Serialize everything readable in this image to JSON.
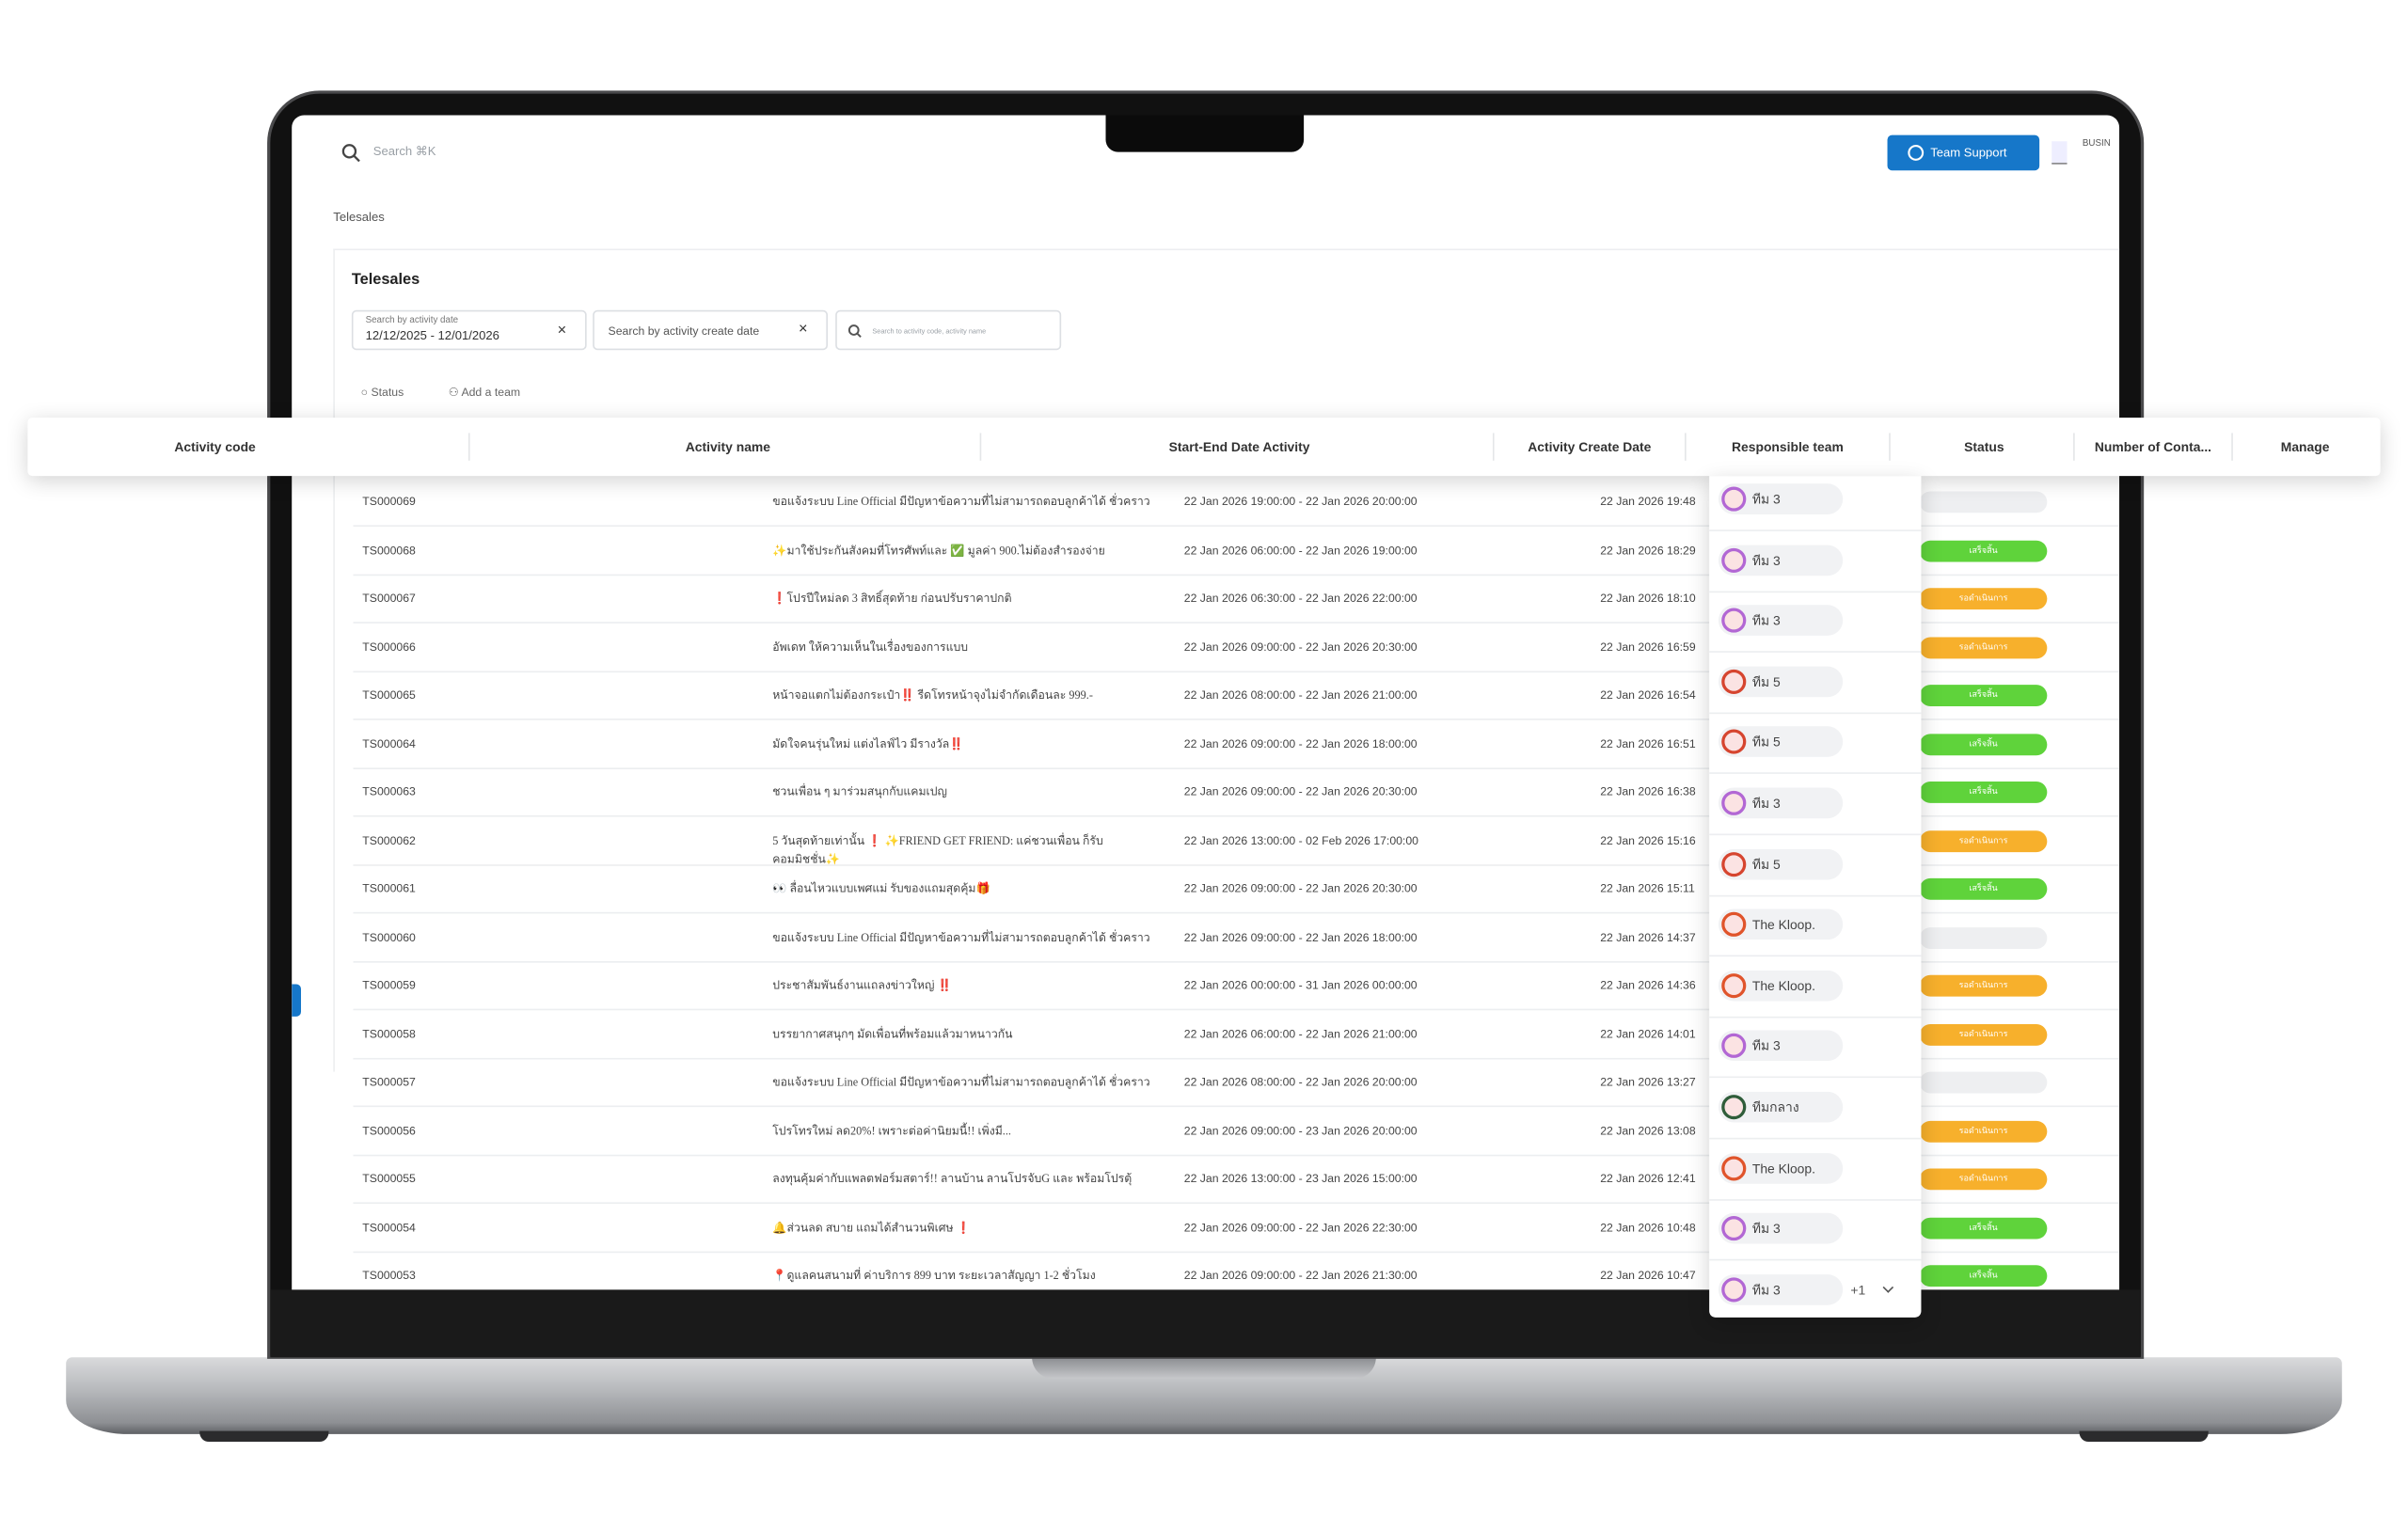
{
  "header": {
    "search_placeholder": "Search ⌘K",
    "team_support": "Team Support",
    "business": "BUSIN"
  },
  "breadcrumb": "Telesales",
  "panel": {
    "title": "Telesales",
    "activity_date_label": "Search by activity date",
    "activity_date": "12/12/2025 - 12/01/2026",
    "create_date": "Search by activity create date",
    "search_placeholder": "Search to activity code, activity name",
    "status": "Status",
    "add_team": "Add a team"
  },
  "table": {
    "columns": [
      "Activity code",
      "Activity name",
      "Start-End Date Activity",
      "Activity Create Date",
      "Responsible team",
      "Status",
      "Number of Conta...",
      "Manage"
    ],
    "rows": [
      {
        "code": "TS000069",
        "name": "ขอแจ้งระบบ Line Official มีปัญหาข้อความที่ไม่สามารถตอบลูกค้าได้ ชั่วคราว",
        "date": "22 Jan 2026 19:00:00 - 22 Jan 2026 20:00:00",
        "created": "22 Jan 2026 19:48",
        "status": {
          "color": "#eeeff1"
        }
      },
      {
        "code": "TS000068",
        "name": "✨มาใช้ประกันสังคมที่โทรศัพท์และ ✅ มูลค่า 900.ไม่ต้องสำรองจ่าย",
        "date": "22 Jan 2026 06:00:00 - 22 Jan 2026 19:00:00",
        "created": "22 Jan 2026 18:29",
        "status": {
          "label": "เสร็จสิ้น",
          "color": "#5fd33b"
        }
      },
      {
        "code": "TS000067",
        "name": "❗โปรปีใหม่ลด 3 สิทธิ์สุดท้าย ก่อนปรับราคาปกติ",
        "date": "22 Jan 2026 06:30:00 - 22 Jan 2026 22:00:00",
        "created": "22 Jan 2026 18:10",
        "status": {
          "label": "รอดำเนินการ",
          "color": "#f7b02c"
        }
      },
      {
        "code": "TS000066",
        "name": "อัพเดท ให้ความเห็นในเรื่องของการแบบ",
        "date": "22 Jan 2026 09:00:00 - 22 Jan 2026 20:30:00",
        "created": "22 Jan 2026 16:59",
        "status": {
          "label": "รอดำเนินการ",
          "color": "#f7b02c"
        }
      },
      {
        "code": "TS000065",
        "name": "หน้าจอแตกไม่ต้องกระเป๋า‼️ รีดโทรหน้าจุงไม่จำกัดเดือนละ 999.-",
        "date": "22 Jan 2026 08:00:00 - 22 Jan 2026 21:00:00",
        "created": "22 Jan 2026 16:54",
        "status": {
          "label": "เสร็จสิ้น",
          "color": "#5fd33b"
        }
      },
      {
        "code": "TS000064",
        "name": "มัดใจคนรุ่นใหม่ แต่งไลฟ์ไว มีรางวัล‼️",
        "date": "22 Jan 2026 09:00:00 - 22 Jan 2026 18:00:00",
        "created": "22 Jan 2026 16:51",
        "status": {
          "label": "เสร็จสิ้น",
          "color": "#5fd33b"
        }
      },
      {
        "code": "TS000063",
        "name": "ชวนเพื่อน ๆ มาร่วมสนุกกับแคมเปญ",
        "date": "22 Jan 2026 09:00:00 - 22 Jan 2026 20:30:00",
        "created": "22 Jan 2026 16:38",
        "status": {
          "label": "เสร็จสิ้น",
          "color": "#5fd33b"
        }
      },
      {
        "code": "TS000062",
        "name": "5 วันสุดท้ายเท่านั้น ❗ ✨FRIEND GET FRIEND: แค่ชวนเพื่อน ก็รับคอมมิชชั่น✨",
        "date": "22 Jan 2026 13:00:00 - 02 Feb 2026 17:00:00",
        "created": "22 Jan 2026 15:16",
        "status": {
          "label": "รอดำเนินการ",
          "color": "#f7b02c"
        }
      },
      {
        "code": "TS000061",
        "name": "👀 ลื่อนไหวแบบเพศแม่ รับของแถมสุดคุ้ม🎁",
        "date": "22 Jan 2026 09:00:00 - 22 Jan 2026 20:30:00",
        "created": "22 Jan 2026 15:11",
        "status": {
          "label": "เสร็จสิ้น",
          "color": "#5fd33b"
        }
      },
      {
        "code": "TS000060",
        "name": "ขอแจ้งระบบ Line Official มีปัญหาข้อความที่ไม่สามารถตอบลูกค้าได้ ชั่วคราว",
        "date": "22 Jan 2026 09:00:00 - 22 Jan 2026 18:00:00",
        "created": "22 Jan 2026 14:37",
        "status": {
          "color": "#eeeff1"
        }
      },
      {
        "code": "TS000059",
        "name": "ประชาสัมพันธ์งานแถลงข่าวใหญ่ ‼️",
        "date": "22 Jan 2026 00:00:00 - 31 Jan 2026 00:00:00",
        "created": "22 Jan 2026 14:36",
        "status": {
          "label": "รอดำเนินการ",
          "color": "#f7b02c"
        }
      },
      {
        "code": "TS000058",
        "name": "บรรยากาศสนุกๆ มัดเพื่อนที่พร้อมแล้วมาหนาวกัน",
        "date": "22 Jan 2026 06:00:00 - 22 Jan 2026 21:00:00",
        "created": "22 Jan 2026 14:01",
        "status": {
          "label": "รอดำเนินการ",
          "color": "#f7b02c"
        }
      },
      {
        "code": "TS000057",
        "name": "ขอแจ้งระบบ Line Official มีปัญหาข้อความที่ไม่สามารถตอบลูกค้าได้ ชั่วคราว",
        "date": "22 Jan 2026 08:00:00 - 22 Jan 2026 20:00:00",
        "created": "22 Jan 2026 13:27",
        "status": {
          "color": "#eeeff1"
        }
      },
      {
        "code": "TS000056",
        "name": "โปรโทรใหม่ ลด20%! เพราะต่อค่านิยมนี้!! เพิ่งมี...",
        "date": "22 Jan 2026 09:00:00 - 23 Jan 2026 20:00:00",
        "created": "22 Jan 2026 13:08",
        "status": {
          "label": "รอดำเนินการ",
          "color": "#f7b02c"
        }
      },
      {
        "code": "TS000055",
        "name": "ลงทุนคุ้มค่ากับแพลตฟอร์มสตาร์!! ลานบ้าน ลานโปรจับG และ พร้อมโปรตุ้",
        "date": "22 Jan 2026 13:00:00 - 23 Jan 2026 15:00:00",
        "created": "22 Jan 2026 12:41",
        "status": {
          "label": "รอดำเนินการ",
          "color": "#f7b02c"
        }
      },
      {
        "code": "TS000054",
        "name": "🔔ส่วนลด สบาย แถมได้สำนวนพิเศษ ❗",
        "date": "22 Jan 2026 09:00:00 - 22 Jan 2026 22:30:00",
        "created": "22 Jan 2026 10:48",
        "status": {
          "label": "เสร็จสิ้น",
          "color": "#5fd33b"
        }
      },
      {
        "code": "TS000053",
        "name": "📍ดูแลคนสนามที่ ค่าบริการ 899 บาท ระยะเวลาสัญญา 1-2 ชั่วโมง",
        "date": "22 Jan 2026 09:00:00 - 22 Jan 2026 21:30:00",
        "created": "22 Jan 2026 10:47",
        "status": {
          "label": "เสร็จสิ้น",
          "color": "#5fd33b"
        }
      }
    ]
  },
  "teams": [
    {
      "name": "ทีม 3",
      "avatar_color": "#b267d4"
    },
    {
      "name": "ทีม 3",
      "avatar_color": "#b267d4"
    },
    {
      "name": "ทีม 3",
      "avatar_color": "#b267d4"
    },
    {
      "name": "ทีม 5",
      "avatar_color": "#d6452f"
    },
    {
      "name": "ทีม 5",
      "avatar_color": "#d6452f"
    },
    {
      "name": "ทีม 3",
      "avatar_color": "#b267d4"
    },
    {
      "name": "ทีม 5",
      "avatar_color": "#d6452f"
    },
    {
      "name": "The Kloop.",
      "avatar_color": "#e0542b"
    },
    {
      "name": "The Kloop.",
      "avatar_color": "#e0542b"
    },
    {
      "name": "ทีม 3",
      "avatar_color": "#b267d4"
    },
    {
      "name": "ทีมกลาง",
      "avatar_color": "#2f5d3a"
    },
    {
      "name": "The Kloop.",
      "avatar_color": "#e0542b"
    },
    {
      "name": "ทีม 3",
      "avatar_color": "#b267d4"
    },
    {
      "name": "ทีม 3",
      "avatar_color": "#b267d4",
      "more": "+1"
    }
  ]
}
